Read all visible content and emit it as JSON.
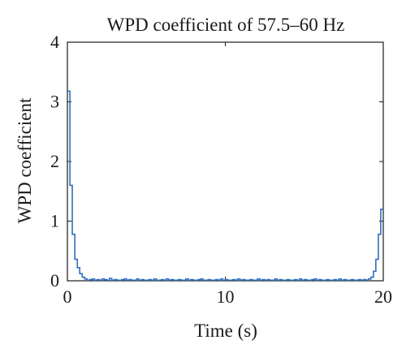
{
  "chart_data": {
    "type": "line",
    "title": "WPD coefficient of 57.5–60 Hz",
    "xlabel": "Time (s)",
    "ylabel": "WPD coefficient",
    "xlim": [
      0,
      20
    ],
    "ylim": [
      0,
      4
    ],
    "xticks": [
      0,
      10,
      20
    ],
    "yticks": [
      0,
      1,
      2,
      3,
      4
    ],
    "grid": false,
    "legend": "none",
    "step": true,
    "series": [
      {
        "color": "#2f6fbd",
        "x": [
          0,
          0.16,
          0.31,
          0.47,
          0.63,
          0.78,
          0.94,
          1.1,
          1.25,
          1.41,
          1.56,
          1.72,
          1.88,
          2.03,
          2.19,
          2.34,
          2.5,
          2.66,
          2.81,
          2.97,
          3.13,
          3.28,
          3.44,
          3.59,
          3.75,
          3.91,
          4.06,
          4.22,
          4.38,
          4.53,
          4.69,
          4.84,
          5,
          5.16,
          5.31,
          5.47,
          5.63,
          5.78,
          5.94,
          6.09,
          6.25,
          6.41,
          6.56,
          6.72,
          6.88,
          7.03,
          7.19,
          7.34,
          7.5,
          7.66,
          7.81,
          7.97,
          8.13,
          8.28,
          8.44,
          8.59,
          8.75,
          8.91,
          9.06,
          9.22,
          9.38,
          9.53,
          9.69,
          9.84,
          10,
          10.16,
          10.31,
          10.47,
          10.63,
          10.78,
          10.94,
          11.09,
          11.25,
          11.41,
          11.56,
          11.72,
          11.88,
          12.03,
          12.19,
          12.34,
          12.5,
          12.66,
          12.81,
          12.97,
          13.13,
          13.28,
          13.44,
          13.59,
          13.75,
          13.91,
          14.06,
          14.22,
          14.38,
          14.53,
          14.69,
          14.84,
          15,
          15.16,
          15.31,
          15.47,
          15.63,
          15.78,
          15.94,
          16.09,
          16.25,
          16.41,
          16.56,
          16.72,
          16.88,
          17.03,
          17.19,
          17.34,
          17.5,
          17.66,
          17.81,
          17.97,
          18.13,
          18.28,
          18.44,
          18.59,
          18.75,
          18.91,
          19.06,
          19.22,
          19.38,
          19.53,
          19.69,
          19.84,
          20
        ],
        "y": [
          3.18,
          1.6,
          0.78,
          0.36,
          0.22,
          0.12,
          0.06,
          0.03,
          0.01,
          0.02,
          0.03,
          0.01,
          0.02,
          0.01,
          0.03,
          0.02,
          0.01,
          0.04,
          0.01,
          0.02,
          0.01,
          0.01,
          0.02,
          0.03,
          0.01,
          0.02,
          0.01,
          0.01,
          0.03,
          0.01,
          0.02,
          0.01,
          0.01,
          0.02,
          0.01,
          0.03,
          0.01,
          0.01,
          0.02,
          0.01,
          0.03,
          0.01,
          0.02,
          0.01,
          0.01,
          0.02,
          0.01,
          0.01,
          0.03,
          0.01,
          0.02,
          0.01,
          0.01,
          0.02,
          0.03,
          0.01,
          0.01,
          0.02,
          0.01,
          0.01,
          0.02,
          0.01,
          0.03,
          0.01,
          0.02,
          0.01,
          0.01,
          0.02,
          0.01,
          0.03,
          0.01,
          0.02,
          0.01,
          0.01,
          0.02,
          0.01,
          0.01,
          0.03,
          0.01,
          0.02,
          0.01,
          0.02,
          0.01,
          0.01,
          0.03,
          0.01,
          0.02,
          0.01,
          0.01,
          0.02,
          0.01,
          0.01,
          0.02,
          0.01,
          0.03,
          0.01,
          0.02,
          0.01,
          0.01,
          0.02,
          0.03,
          0.01,
          0.02,
          0.01,
          0.01,
          0.02,
          0.01,
          0.01,
          0.02,
          0.01,
          0.03,
          0.01,
          0.02,
          0.01,
          0.01,
          0.02,
          0.01,
          0.01,
          0.02,
          0.01,
          0.02,
          0.01,
          0.03,
          0.06,
          0.16,
          0.36,
          0.78,
          1.2,
          1.2
        ]
      }
    ]
  }
}
